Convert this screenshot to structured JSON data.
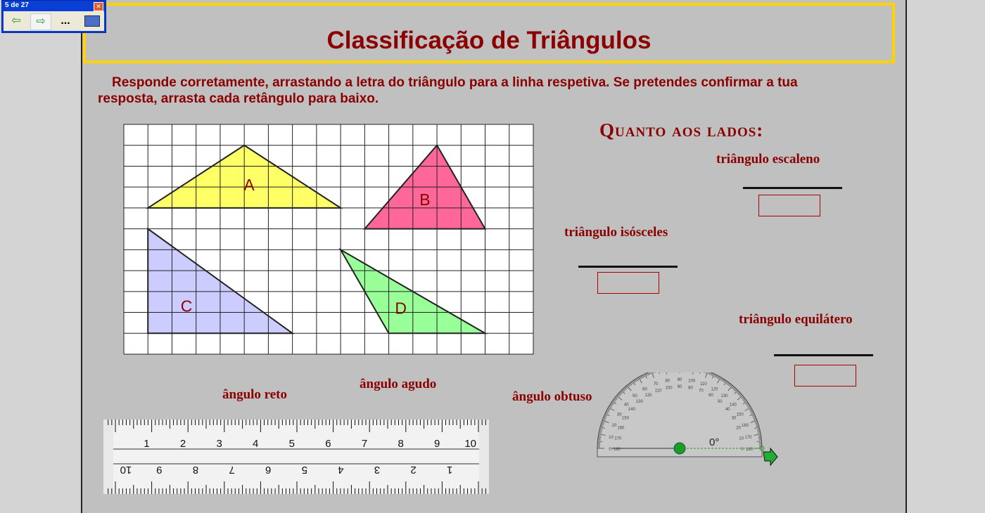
{
  "nav": {
    "counter": "5 de 27",
    "close": "✕",
    "prev_icon": "arrow-left-icon",
    "next_icon": "arrow-right-icon",
    "more": "...",
    "fullscreen_icon": "fullscreen-icon"
  },
  "title": "Classificação de Triângulos",
  "instructions": "Responde corretamente, arrastando a letra do triângulo para a linha respetiva. Se pretendes confirmar a tua resposta, arrasta cada retângulo para baixo.",
  "triangles": [
    {
      "label": "A",
      "color": "#ffff66"
    },
    {
      "label": "B",
      "color": "#ff6699"
    },
    {
      "label": "C",
      "color": "#ccccff"
    },
    {
      "label": "D",
      "color": "#99ff99"
    }
  ],
  "sides": {
    "heading": "Quanto aos lados:",
    "escaleno": "triângulo escaleno",
    "isosceles": "triângulo isósceles",
    "equilatero": "triângulo equilátero"
  },
  "angles": {
    "reto": "ângulo reto",
    "agudo": "ângulo agudo",
    "obtuso": "ângulo obtuso"
  },
  "ruler": {
    "top_numbers": [
      "1",
      "2",
      "3",
      "4",
      "5",
      "6",
      "7",
      "8",
      "9",
      "10"
    ]
  },
  "protractor": {
    "angle": "0°"
  },
  "colors": {
    "accent": "#8b0000",
    "frame": "#ffd200"
  }
}
